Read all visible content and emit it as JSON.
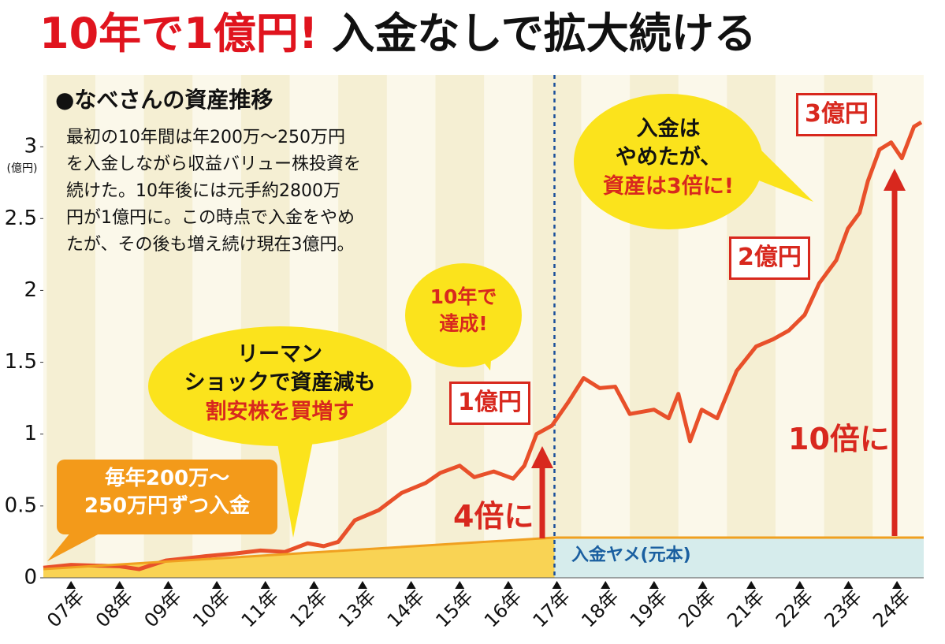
{
  "chart_data": {
    "type": "line",
    "title": [
      "10年で1億円!",
      "入金なしで拡大続ける"
    ],
    "subtitle": "●なべさんの資産推移",
    "description": [
      "最初の10年間は年200万～250万円",
      "を入金しながら収益バリュー株投資を",
      "続けた。10年後には元手約2800万",
      "円が1億円に。この時点で入金をやめ",
      "たが、その後も増え続け現在3億円。"
    ],
    "y_unit_label": "(億円)",
    "xlim": [
      6.43,
      24.55
    ],
    "xticks": [
      {
        "value": 7,
        "label": "07年"
      },
      {
        "value": 8,
        "label": "08年"
      },
      {
        "value": 9,
        "label": "09年"
      },
      {
        "value": 10,
        "label": "10年"
      },
      {
        "value": 11,
        "label": "11年"
      },
      {
        "value": 12,
        "label": "12年"
      },
      {
        "value": 13,
        "label": "13年"
      },
      {
        "value": 14,
        "label": "14年"
      },
      {
        "value": 15,
        "label": "15年"
      },
      {
        "value": 16,
        "label": "16年"
      },
      {
        "value": 17,
        "label": "17年"
      },
      {
        "value": 18,
        "label": "18年"
      },
      {
        "value": 19,
        "label": "19年"
      },
      {
        "value": 20,
        "label": "20年"
      },
      {
        "value": 21,
        "label": "21年"
      },
      {
        "value": 22,
        "label": "22年"
      },
      {
        "value": 23,
        "label": "23年"
      },
      {
        "value": 24,
        "label": "24年"
      }
    ],
    "ylim": [
      0,
      3.5
    ],
    "yticks": [
      0,
      0.5,
      1,
      1.5,
      2,
      2.5,
      3
    ],
    "series": [
      {
        "color": "#e8502a",
        "x": [
          6.43,
          7,
          8,
          8.4,
          8.95,
          9.76,
          10.4,
          10.9,
          11.4,
          11.87,
          12.2,
          12.5,
          12.84,
          13.33,
          13.8,
          14.3,
          14.6,
          15.0,
          15.3,
          15.7,
          16.1,
          16.33,
          16.58,
          16.9,
          17.23,
          17.55,
          17.88,
          18.2,
          18.5,
          19.0,
          19.3,
          19.5,
          19.74,
          19.98,
          20.3,
          20.7,
          21.1,
          21.45,
          21.77,
          22.1,
          22.4,
          22.75,
          22.99,
          23.23,
          23.4,
          23.64,
          23.88,
          24.1,
          24.35,
          24.5
        ],
        "values": [
          0.07,
          0.09,
          0.08,
          0.06,
          0.12,
          0.15,
          0.17,
          0.19,
          0.18,
          0.24,
          0.22,
          0.25,
          0.4,
          0.47,
          0.59,
          0.66,
          0.73,
          0.78,
          0.7,
          0.74,
          0.69,
          0.78,
          1.0,
          1.06,
          1.22,
          1.39,
          1.32,
          1.33,
          1.14,
          1.17,
          1.11,
          1.28,
          0.95,
          1.17,
          1.11,
          1.44,
          1.61,
          1.66,
          1.72,
          1.83,
          2.05,
          2.21,
          2.43,
          2.54,
          2.76,
          2.98,
          3.03,
          2.92,
          3.14,
          3.17
        ]
      },
      {
        "color": "#f0a020",
        "x": [
          6.43,
          16.95,
          24.55
        ],
        "values": [
          0.06,
          0.28,
          0.28
        ]
      }
    ],
    "annotations": {
      "deposit": [
        "毎年200万～",
        "250万円ずつ入金"
      ],
      "lehman": [
        "リーマン",
        "ショックで資産減も",
        "割安株を買増す"
      ],
      "achieved": [
        "10年で",
        "達成!"
      ],
      "oku1": "1億円",
      "times4": "4倍に",
      "stop": "入金ヤメ(元本)",
      "oku2": "2億円",
      "oku3": "3億円",
      "stopped": [
        "入金は",
        "やめたが、",
        "資産は3倍に!"
      ],
      "times10": "10倍に"
    }
  }
}
